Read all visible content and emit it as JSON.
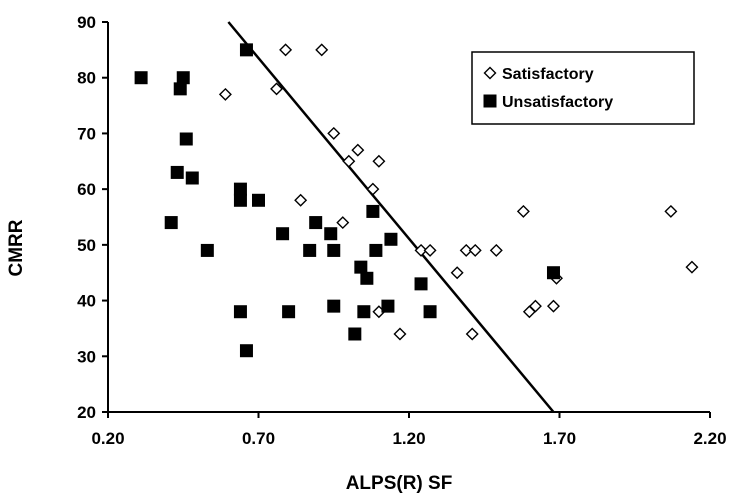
{
  "chart_data": {
    "type": "scatter",
    "title": "",
    "xlabel": "ALPS(R) SF",
    "ylabel": "CMRR",
    "xlim": [
      0.2,
      2.2
    ],
    "ylim": [
      20,
      90
    ],
    "x_ticks": [
      "0.20",
      "0.70",
      "1.20",
      "1.70",
      "2.20"
    ],
    "y_ticks": [
      "20",
      "30",
      "40",
      "50",
      "60",
      "70",
      "80",
      "90"
    ],
    "grid": false,
    "legend_position": "top-right",
    "series": [
      {
        "name": "Satisfactory",
        "marker": "open-diamond",
        "color": "#000000",
        "points": [
          [
            0.59,
            77
          ],
          [
            0.76,
            78
          ],
          [
            0.79,
            85
          ],
          [
            0.91,
            85
          ],
          [
            0.84,
            58
          ],
          [
            0.95,
            70
          ],
          [
            0.98,
            54
          ],
          [
            1.0,
            65
          ],
          [
            1.03,
            67
          ],
          [
            1.08,
            60
          ],
          [
            1.1,
            65
          ],
          [
            1.1,
            38
          ],
          [
            1.17,
            34
          ],
          [
            1.24,
            49
          ],
          [
            1.27,
            49
          ],
          [
            1.36,
            45
          ],
          [
            1.39,
            49
          ],
          [
            1.42,
            49
          ],
          [
            1.41,
            34
          ],
          [
            1.49,
            49
          ],
          [
            1.58,
            56
          ],
          [
            1.6,
            38
          ],
          [
            1.62,
            39
          ],
          [
            1.68,
            39
          ],
          [
            1.69,
            44
          ],
          [
            2.07,
            56
          ],
          [
            2.14,
            46
          ]
        ]
      },
      {
        "name": "Unsatisfactory",
        "marker": "filled-square",
        "color": "#000000",
        "points": [
          [
            0.31,
            80
          ],
          [
            0.41,
            54
          ],
          [
            0.43,
            63
          ],
          [
            0.44,
            78
          ],
          [
            0.45,
            80
          ],
          [
            0.46,
            69
          ],
          [
            0.48,
            62
          ],
          [
            0.53,
            49
          ],
          [
            0.64,
            60
          ],
          [
            0.64,
            58
          ],
          [
            0.64,
            38
          ],
          [
            0.66,
            85
          ],
          [
            0.66,
            31
          ],
          [
            0.7,
            58
          ],
          [
            0.78,
            52
          ],
          [
            0.8,
            38
          ],
          [
            0.87,
            49
          ],
          [
            0.89,
            54
          ],
          [
            0.94,
            52
          ],
          [
            0.95,
            49
          ],
          [
            0.95,
            39
          ],
          [
            1.02,
            34
          ],
          [
            1.04,
            46
          ],
          [
            1.05,
            38
          ],
          [
            1.06,
            44
          ],
          [
            1.08,
            56
          ],
          [
            1.09,
            49
          ],
          [
            1.13,
            39
          ],
          [
            1.14,
            51
          ],
          [
            1.24,
            43
          ],
          [
            1.27,
            38
          ],
          [
            1.68,
            45
          ]
        ]
      }
    ],
    "lines": [
      {
        "x": [
          0.6,
          1.68
        ],
        "y": [
          90,
          20
        ]
      }
    ]
  }
}
